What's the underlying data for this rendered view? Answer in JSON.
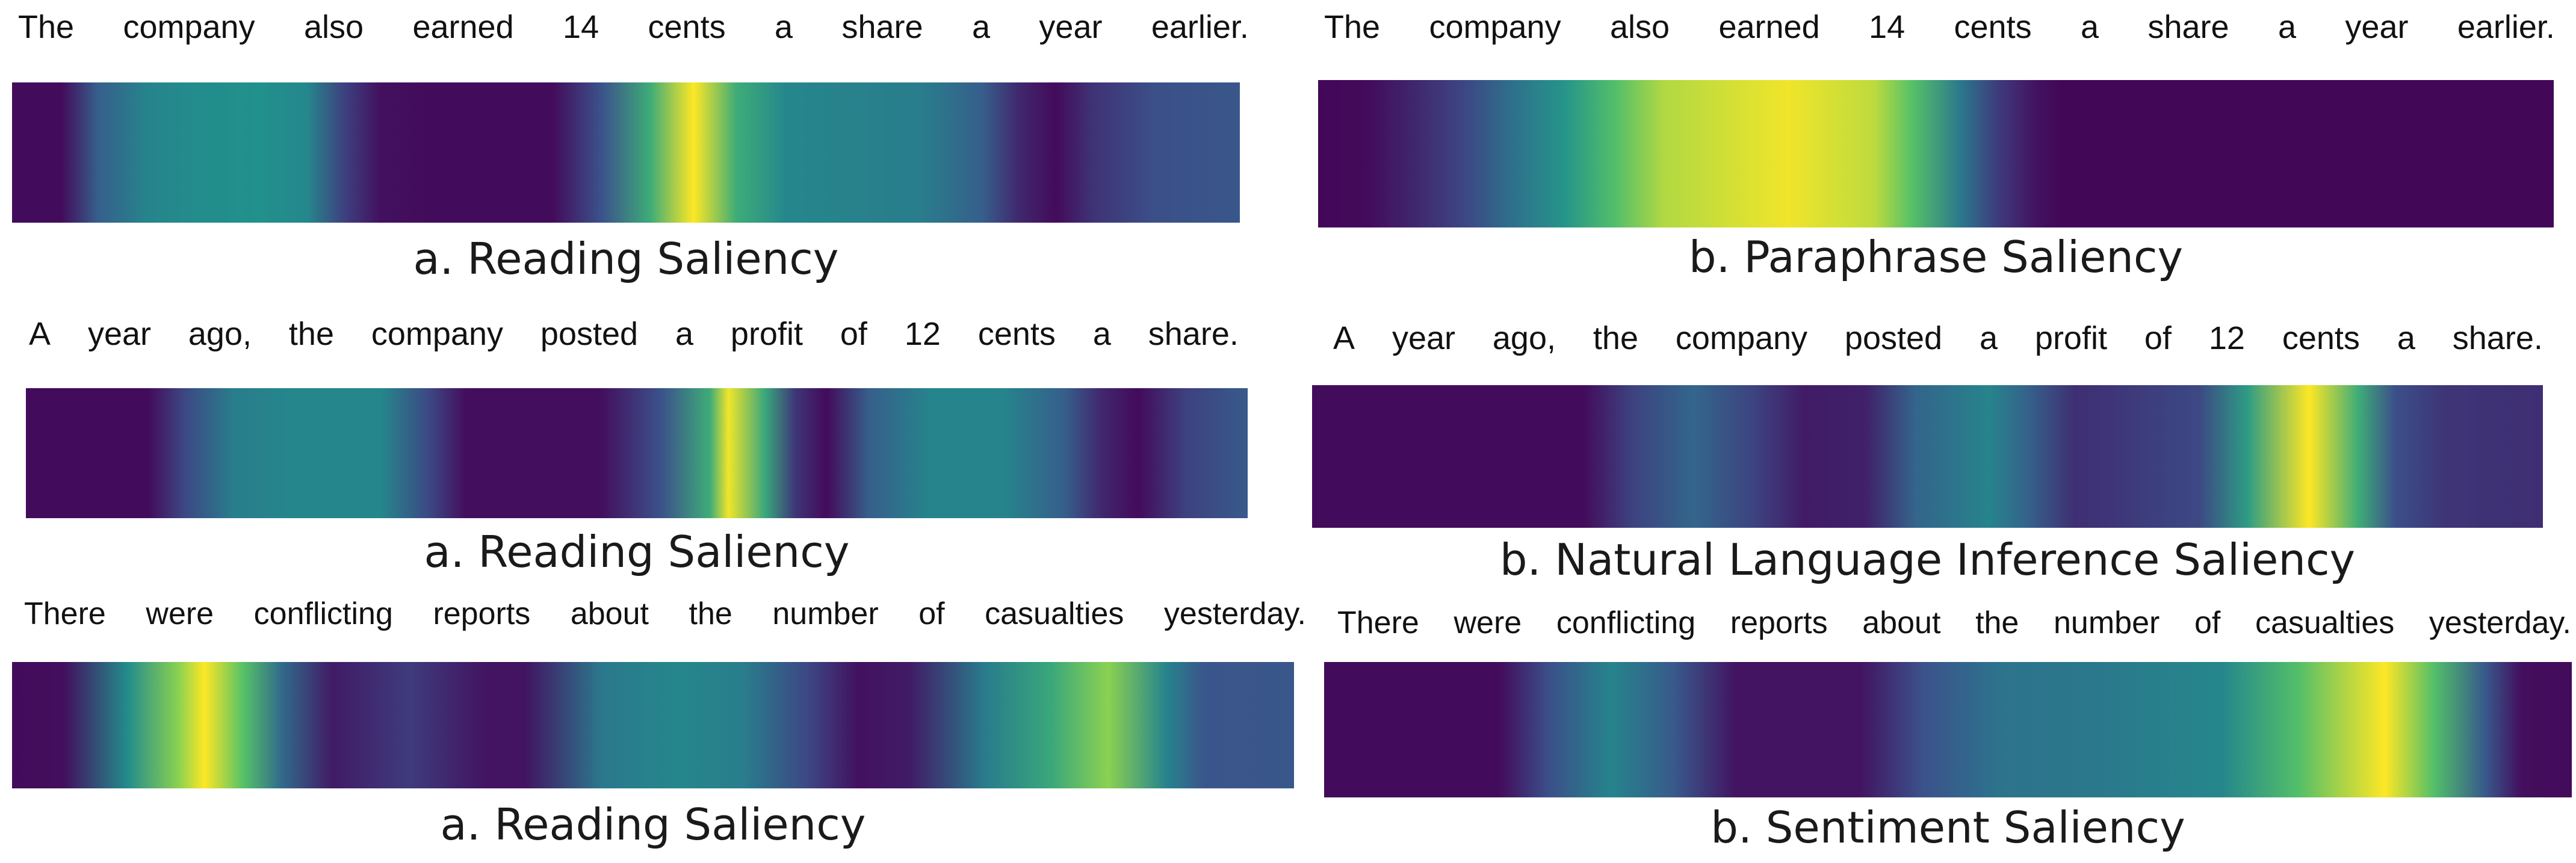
{
  "colormap": {
    "name": "viridis",
    "stops": [
      "#440154",
      "#3b528b",
      "#21918c",
      "#5ec962",
      "#fde725"
    ]
  },
  "panels": [
    {
      "id": "reading-1",
      "sentence": [
        "The",
        "company",
        "also",
        "earned",
        "14",
        "cents",
        "a",
        "share",
        "a",
        "year",
        "earlier."
      ],
      "caption": "a. Reading Saliency",
      "saliency": [
        [
          0.0,
          0.03
        ],
        [
          0.04,
          0.03
        ],
        [
          0.07,
          0.3
        ],
        [
          0.11,
          0.45
        ],
        [
          0.15,
          0.48
        ],
        [
          0.2,
          0.5
        ],
        [
          0.24,
          0.46
        ],
        [
          0.27,
          0.2
        ],
        [
          0.3,
          0.05
        ],
        [
          0.34,
          0.03
        ],
        [
          0.44,
          0.03
        ],
        [
          0.48,
          0.25
        ],
        [
          0.52,
          0.62
        ],
        [
          0.555,
          1.0
        ],
        [
          0.59,
          0.62
        ],
        [
          0.63,
          0.46
        ],
        [
          0.68,
          0.44
        ],
        [
          0.74,
          0.42
        ],
        [
          0.79,
          0.3
        ],
        [
          0.82,
          0.12
        ],
        [
          0.85,
          0.03
        ],
        [
          0.88,
          0.15
        ],
        [
          0.93,
          0.24
        ],
        [
          1.0,
          0.27
        ]
      ]
    },
    {
      "id": "paraphrase",
      "sentence": [
        "The",
        "company",
        "also",
        "earned",
        "14",
        "cents",
        "a",
        "share",
        "a",
        "year",
        "earlier."
      ],
      "caption": "b. Paraphrase Saliency",
      "saliency": [
        [
          0.0,
          0.02
        ],
        [
          0.04,
          0.03
        ],
        [
          0.08,
          0.12
        ],
        [
          0.12,
          0.22
        ],
        [
          0.16,
          0.38
        ],
        [
          0.2,
          0.52
        ],
        [
          0.24,
          0.7
        ],
        [
          0.28,
          0.88
        ],
        [
          0.38,
          0.98
        ],
        [
          0.45,
          0.9
        ],
        [
          0.48,
          0.72
        ],
        [
          0.52,
          0.4
        ],
        [
          0.55,
          0.18
        ],
        [
          0.58,
          0.06
        ],
        [
          0.6,
          0.02
        ],
        [
          1.0,
          0.02
        ]
      ]
    },
    {
      "id": "reading-2",
      "sentence": [
        "A",
        "year",
        "ago,",
        "the",
        "company",
        "posted",
        "a",
        "profit",
        "of",
        "12",
        "cents",
        "a",
        "share."
      ],
      "caption": "a. Reading Saliency",
      "saliency": [
        [
          0.0,
          0.03
        ],
        [
          0.1,
          0.03
        ],
        [
          0.13,
          0.22
        ],
        [
          0.17,
          0.42
        ],
        [
          0.22,
          0.46
        ],
        [
          0.29,
          0.46
        ],
        [
          0.33,
          0.22
        ],
        [
          0.36,
          0.04
        ],
        [
          0.47,
          0.04
        ],
        [
          0.52,
          0.25
        ],
        [
          0.56,
          0.62
        ],
        [
          0.575,
          0.98
        ],
        [
          0.605,
          0.6
        ],
        [
          0.63,
          0.16
        ],
        [
          0.655,
          0.03
        ],
        [
          0.69,
          0.3
        ],
        [
          0.74,
          0.45
        ],
        [
          0.8,
          0.45
        ],
        [
          0.85,
          0.3
        ],
        [
          0.88,
          0.12
        ],
        [
          0.91,
          0.03
        ],
        [
          0.95,
          0.2
        ],
        [
          1.0,
          0.28
        ]
      ]
    },
    {
      "id": "nli",
      "sentence": [
        "A",
        "year",
        "ago,",
        "the",
        "company",
        "posted",
        "a",
        "profit",
        "of",
        "12",
        "cents",
        "a",
        "share."
      ],
      "caption": "b.  Natural Language Inference Saliency",
      "saliency": [
        [
          0.0,
          0.03
        ],
        [
          0.22,
          0.03
        ],
        [
          0.26,
          0.2
        ],
        [
          0.31,
          0.33
        ],
        [
          0.36,
          0.2
        ],
        [
          0.4,
          0.08
        ],
        [
          0.45,
          0.1
        ],
        [
          0.49,
          0.32
        ],
        [
          0.55,
          0.45
        ],
        [
          0.58,
          0.32
        ],
        [
          0.62,
          0.14
        ],
        [
          0.72,
          0.22
        ],
        [
          0.76,
          0.55
        ],
        [
          0.81,
          1.0
        ],
        [
          0.85,
          0.62
        ],
        [
          0.88,
          0.24
        ],
        [
          0.92,
          0.16
        ],
        [
          1.0,
          0.14
        ]
      ]
    },
    {
      "id": "reading-3",
      "sentence": [
        "There",
        "were",
        "conflicting",
        "reports",
        "about",
        "the",
        "number",
        "of",
        "casualties",
        "yesterday."
      ],
      "caption": "a. Reading Saliency",
      "saliency": [
        [
          0.0,
          0.03
        ],
        [
          0.04,
          0.04
        ],
        [
          0.09,
          0.48
        ],
        [
          0.13,
          0.82
        ],
        [
          0.15,
          1.0
        ],
        [
          0.18,
          0.72
        ],
        [
          0.21,
          0.35
        ],
        [
          0.25,
          0.08
        ],
        [
          0.31,
          0.18
        ],
        [
          0.37,
          0.06
        ],
        [
          0.4,
          0.06
        ],
        [
          0.46,
          0.4
        ],
        [
          0.52,
          0.46
        ],
        [
          0.57,
          0.42
        ],
        [
          0.62,
          0.22
        ],
        [
          0.66,
          0.05
        ],
        [
          0.7,
          0.08
        ],
        [
          0.76,
          0.42
        ],
        [
          0.81,
          0.6
        ],
        [
          0.855,
          0.82
        ],
        [
          0.9,
          0.45
        ],
        [
          0.93,
          0.26
        ],
        [
          1.0,
          0.27
        ]
      ]
    },
    {
      "id": "sentiment",
      "sentence": [
        "There",
        "were",
        "conflicting",
        "reports",
        "about",
        "the",
        "number",
        "of",
        "casualties",
        "yesterday."
      ],
      "caption": "b. Sentiment Saliency",
      "saliency": [
        [
          0.0,
          0.03
        ],
        [
          0.14,
          0.03
        ],
        [
          0.18,
          0.24
        ],
        [
          0.23,
          0.45
        ],
        [
          0.28,
          0.28
        ],
        [
          0.33,
          0.06
        ],
        [
          0.43,
          0.06
        ],
        [
          0.48,
          0.25
        ],
        [
          0.54,
          0.38
        ],
        [
          0.62,
          0.4
        ],
        [
          0.72,
          0.46
        ],
        [
          0.78,
          0.7
        ],
        [
          0.85,
          1.0
        ],
        [
          0.89,
          0.7
        ],
        [
          0.93,
          0.28
        ],
        [
          0.96,
          0.04
        ],
        [
          1.0,
          0.03
        ]
      ]
    }
  ]
}
